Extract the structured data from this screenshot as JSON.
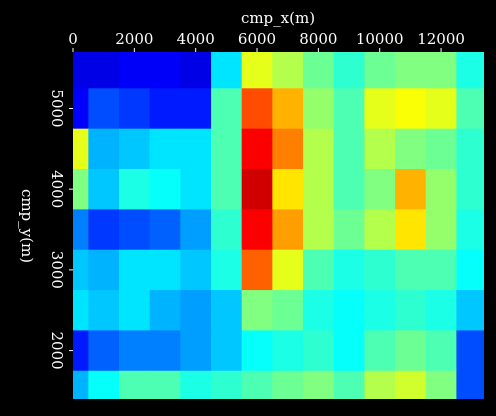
{
  "chart_data": {
    "type": "heatmap",
    "title": "",
    "xlabel": "cmp_x(m)",
    "ylabel": "cmp_y(m)",
    "xlim": [
      0,
      13400
    ],
    "ylim": [
      1400,
      5700
    ],
    "x_ticks": [
      0,
      2000,
      4000,
      6000,
      8000,
      10000,
      12000
    ],
    "y_ticks": [
      2000,
      3000,
      4000,
      5000
    ],
    "x_tick_labels": [
      "0",
      "2000",
      "4000",
      "6000",
      "8000",
      "10000",
      "12000"
    ],
    "y_tick_labels": [
      "2000",
      "3000",
      "4000",
      "5000"
    ],
    "colormap": "jet",
    "background": "#000000",
    "text_color": "#ffffff",
    "value_range": [
      0,
      1
    ],
    "x": [
      0,
      1000,
      2000,
      3000,
      4000,
      5000,
      6000,
      7000,
      8000,
      9000,
      10000,
      11000,
      12000,
      13000
    ],
    "y": [
      5500,
      5000,
      4500,
      4000,
      3500,
      3000,
      2500,
      2000,
      1500
    ],
    "z": [
      [
        0.1,
        0.1,
        0.12,
        0.12,
        0.1,
        0.35,
        0.6,
        0.55,
        0.48,
        0.42,
        0.48,
        0.5,
        0.5,
        0.4
      ],
      [
        0.12,
        0.2,
        0.18,
        0.15,
        0.15,
        0.45,
        0.8,
        0.7,
        0.52,
        0.45,
        0.6,
        0.62,
        0.6,
        0.45
      ],
      [
        0.6,
        0.3,
        0.32,
        0.35,
        0.35,
        0.45,
        0.88,
        0.75,
        0.55,
        0.45,
        0.55,
        0.5,
        0.48,
        0.42
      ],
      [
        0.5,
        0.32,
        0.4,
        0.38,
        0.35,
        0.45,
        0.92,
        0.65,
        0.55,
        0.45,
        0.5,
        0.7,
        0.52,
        0.42
      ],
      [
        0.25,
        0.18,
        0.2,
        0.22,
        0.28,
        0.42,
        0.88,
        0.72,
        0.55,
        0.48,
        0.55,
        0.65,
        0.52,
        0.4
      ],
      [
        0.32,
        0.3,
        0.35,
        0.35,
        0.32,
        0.4,
        0.78,
        0.6,
        0.45,
        0.4,
        0.42,
        0.45,
        0.45,
        0.38
      ],
      [
        0.35,
        0.32,
        0.35,
        0.3,
        0.28,
        0.32,
        0.5,
        0.48,
        0.4,
        0.38,
        0.4,
        0.42,
        0.4,
        0.32
      ],
      [
        0.15,
        0.22,
        0.25,
        0.25,
        0.28,
        0.32,
        0.38,
        0.4,
        0.42,
        0.38,
        0.45,
        0.48,
        0.45,
        0.2
      ],
      [
        0.3,
        0.38,
        0.45,
        0.45,
        0.4,
        0.42,
        0.45,
        0.48,
        0.5,
        0.45,
        0.55,
        0.58,
        0.5,
        0.2
      ]
    ]
  }
}
